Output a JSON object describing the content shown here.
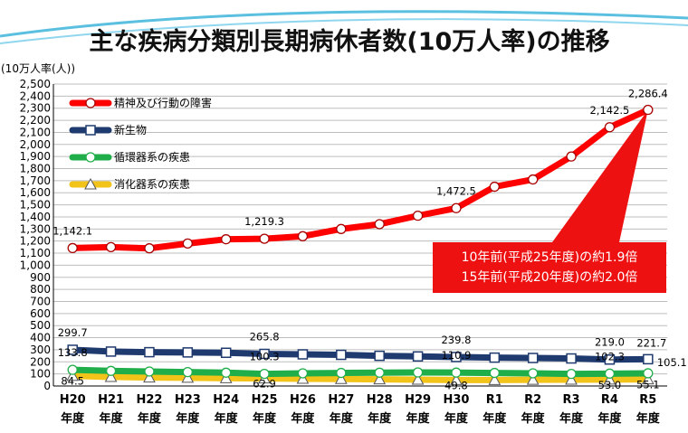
{
  "page": {
    "title": "主な疾病分類別長期病休者数(10万人率)の推移"
  },
  "chart_data": {
    "type": "line",
    "unit_label": "(10万人率(人))",
    "ylim": [
      0,
      2500
    ],
    "ytick_step": 100,
    "grid": true,
    "legend_position": "top-left",
    "categories": [
      [
        "H20",
        "年度"
      ],
      [
        "H21",
        "年度"
      ],
      [
        "H22",
        "年度"
      ],
      [
        "H23",
        "年度"
      ],
      [
        "H24",
        "年度"
      ],
      [
        "H25",
        "年度"
      ],
      [
        "H26",
        "年度"
      ],
      [
        "H27",
        "年度"
      ],
      [
        "H28",
        "年度"
      ],
      [
        "H29",
        "年度"
      ],
      [
        "H30",
        "年度"
      ],
      [
        "R1",
        "年度"
      ],
      [
        "R2",
        "年度"
      ],
      [
        "R3",
        "年度"
      ],
      [
        "R4",
        "年度"
      ],
      [
        "R5",
        "年度"
      ]
    ],
    "series": [
      {
        "name": "精神及び行動の障害",
        "color": "#ff0000",
        "marker": "circle",
        "values": [
          1142.1,
          1150,
          1140,
          1180,
          1215,
          1219.3,
          1240,
          1300,
          1340,
          1410,
          1472.5,
          1650,
          1710,
          1900,
          2142.5,
          2286.4
        ],
        "labels": [
          {
            "i": 0,
            "text": "1,142.1"
          },
          {
            "i": 5,
            "text": "1,219.3"
          },
          {
            "i": 10,
            "text": "1,472.5"
          },
          {
            "i": 14,
            "text": "2,142.5"
          },
          {
            "i": 15,
            "text": "2,286.4"
          }
        ]
      },
      {
        "name": "新生物",
        "color": "#1f3a6e",
        "marker": "square",
        "values": [
          299.7,
          285,
          280,
          278,
          275,
          265.8,
          262,
          258,
          250,
          245,
          239.8,
          235,
          232,
          228,
          219.0,
          221.7
        ],
        "labels": [
          {
            "i": 0,
            "text": "299.7"
          },
          {
            "i": 5,
            "text": "265.8"
          },
          {
            "i": 10,
            "text": "239.8"
          },
          {
            "i": 14,
            "text": "219.0"
          },
          {
            "i": 15,
            "text": "221.7"
          }
        ]
      },
      {
        "name": "循環器系の疾患",
        "color": "#1fae4a",
        "marker": "circle",
        "values": [
          133.8,
          125,
          120,
          115,
          110,
          100.3,
          105,
          108,
          110,
          112,
          110.9,
          108,
          105,
          100,
          102.3,
          105.1
        ],
        "labels": [
          {
            "i": 0,
            "text": "133.8"
          },
          {
            "i": 5,
            "text": "100.3"
          },
          {
            "i": 10,
            "text": "110.9"
          },
          {
            "i": 14,
            "text": "102.3"
          },
          {
            "i": 15,
            "text": "105.1"
          }
        ]
      },
      {
        "name": "消化器系の疾患",
        "color": "#f2c318",
        "marker": "triangle",
        "values": [
          84.5,
          75,
          70,
          68,
          65,
          62.9,
          60,
          58,
          55,
          52,
          49.8,
          50,
          51,
          52,
          53.0,
          55.1
        ],
        "labels": [
          {
            "i": 0,
            "text": "84.5"
          },
          {
            "i": 5,
            "text": "62.9"
          },
          {
            "i": 10,
            "text": "49.8"
          },
          {
            "i": 14,
            "text": "53.0"
          },
          {
            "i": 15,
            "text": "55.1"
          }
        ]
      }
    ],
    "annotation": {
      "lines": [
        "10年前(平成25年度)の約1.9倍",
        "15年前(平成20年度)の約2.0倍"
      ],
      "fill": "#ee1111"
    }
  }
}
